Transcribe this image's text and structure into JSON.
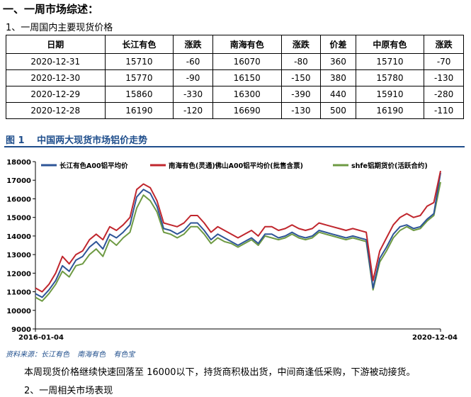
{
  "heading": "一、一周市场综述：",
  "subheading": "1、一周国内主要现货价格",
  "table": {
    "headers": [
      "日期",
      "长江有色",
      "涨跌",
      "南海有色",
      "涨跌",
      "价差",
      "中原有色",
      "涨跌"
    ],
    "rows": [
      [
        "2020-12-31",
        "15710",
        "-60",
        "16070",
        "-80",
        "360",
        "15710",
        "-70"
      ],
      [
        "2020-12-30",
        "15770",
        "-90",
        "16150",
        "-150",
        "380",
        "15780",
        "-130"
      ],
      [
        "2020-12-29",
        "15860",
        "-330",
        "16300",
        "-390",
        "440",
        "15910",
        "-280"
      ],
      [
        "2020-12-28",
        "16190",
        "-120",
        "16690",
        "-130",
        "500",
        "16190",
        "-110"
      ]
    ]
  },
  "figure_title": "图 1　 中国两大现货市场铝价走势",
  "source": {
    "label": "资料来源：长江有色",
    "items": [
      "南海有色",
      "有色宝"
    ]
  },
  "paragraph": "本周现货价格继续快速回落至 16000以下，持货商积极出货，中间商逢低采购，下游被动接货。",
  "section2": "2、一周相关市场表现",
  "chart_data": {
    "type": "line",
    "xlabel": "",
    "ylabel": "",
    "x_ticks": [
      "2016-01-04",
      "2020-12-04"
    ],
    "y_ticks": [
      9000,
      10000,
      11000,
      12000,
      13000,
      14000,
      15000,
      16000,
      17000,
      18000
    ],
    "ylim": [
      9000,
      18000
    ],
    "grid": false,
    "legend_position": "top",
    "x_index_range": [
      0,
      60
    ],
    "series": [
      {
        "name": "长江有色A00铝平均价",
        "color": "#2e5597",
        "values": [
          10900,
          10700,
          11100,
          11600,
          12400,
          12100,
          12700,
          12900,
          13400,
          13700,
          13300,
          14100,
          13900,
          14200,
          14600,
          16100,
          16500,
          16300,
          15600,
          14400,
          14300,
          14100,
          14300,
          14700,
          14700,
          14300,
          13800,
          14100,
          13900,
          13700,
          13500,
          13700,
          13900,
          13600,
          14100,
          14100,
          13900,
          14000,
          14200,
          14000,
          13900,
          14000,
          14300,
          14200,
          14100,
          14000,
          13900,
          14000,
          13900,
          13800,
          11200,
          12800,
          13400,
          14100,
          14500,
          14600,
          14400,
          14500,
          14900,
          15200,
          17400
        ]
      },
      {
        "name": "南海有色(灵通)佛山A00铝平均价(批售含票)",
        "color": "#c0262d",
        "values": [
          11200,
          11000,
          11400,
          12000,
          12900,
          12500,
          13000,
          13200,
          13800,
          14100,
          13800,
          14500,
          14300,
          14600,
          15000,
          16500,
          16800,
          16600,
          15900,
          14700,
          14600,
          14500,
          14700,
          15100,
          15100,
          14700,
          14200,
          14500,
          14300,
          14100,
          13900,
          14100,
          14300,
          14000,
          14500,
          14500,
          14300,
          14400,
          14600,
          14400,
          14300,
          14400,
          14700,
          14600,
          14500,
          14400,
          14300,
          14400,
          14300,
          14200,
          11600,
          13200,
          13900,
          14600,
          15000,
          15200,
          15000,
          15100,
          15600,
          15800,
          17500
        ]
      },
      {
        "name": "shfe铝期货价(活跃合约)",
        "color": "#6e9a43",
        "values": [
          10700,
          10500,
          10900,
          11400,
          12100,
          11800,
          12400,
          12500,
          13000,
          13300,
          12900,
          13800,
          13500,
          13900,
          14200,
          15500,
          16200,
          15900,
          15300,
          14200,
          14100,
          13900,
          14100,
          14500,
          14500,
          14100,
          13600,
          13900,
          13700,
          13600,
          13400,
          13600,
          13800,
          13500,
          14000,
          13900,
          13800,
          13900,
          14100,
          13900,
          13800,
          13900,
          14200,
          14100,
          14000,
          13900,
          13800,
          13900,
          13800,
          13700,
          11100,
          12600,
          13200,
          13900,
          14300,
          14500,
          14300,
          14400,
          14800,
          15100,
          16900
        ]
      }
    ]
  }
}
